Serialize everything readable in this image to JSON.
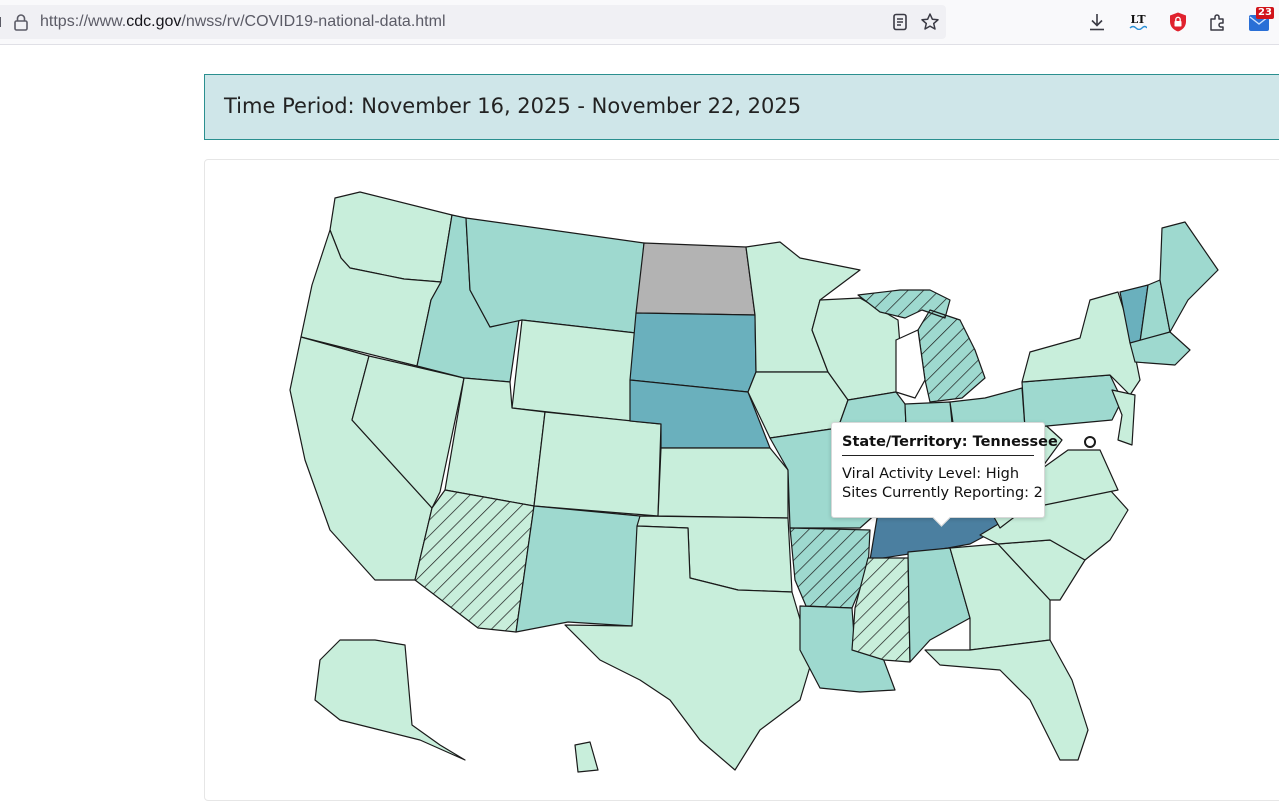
{
  "browser": {
    "url_prefix": "https://www.",
    "url_host": "cdc.gov",
    "url_path": "/nwss/rv/COVID19-national-data.html",
    "extension_badge": "23",
    "lt_label": "LT"
  },
  "period": {
    "text": "Time Period: November 16, 2025 - November 22, 2025"
  },
  "map": {
    "colors": {
      "very_low": "#c8eedb",
      "low": "#9ed9cf",
      "moderate": "#6ab0bd",
      "high": "#4b7fa0",
      "no_data": "#b3b3b3",
      "border": "#1a1a1a"
    },
    "states": {
      "WA": "very_low",
      "OR": "very_low",
      "CA": "very_low",
      "NV": "very_low",
      "ID": "low",
      "MT": "low",
      "WY": "very_low",
      "UT": "very_low",
      "CO": "very_low",
      "AZ": "very_low",
      "NM": "low",
      "ND": "no_data",
      "SD": "moderate",
      "NE": "moderate",
      "KS": "very_low",
      "OK": "very_low",
      "TX": "very_low",
      "MN": "very_low",
      "IA": "very_low",
      "MO": "low",
      "AR": "low",
      "LA": "low",
      "WI": "very_low",
      "IL": "low",
      "MI": "low",
      "IN": "low",
      "OH": "low",
      "KY": "low",
      "TN": "high",
      "MS": "very_low",
      "AL": "low",
      "GA": "very_low",
      "FL": "very_low",
      "SC": "very_low",
      "NC": "very_low",
      "VA": "very_low",
      "WV": "very_low",
      "PA": "low",
      "NY": "very_low",
      "VT": "moderate",
      "NH": "low",
      "ME": "low",
      "MA": "low",
      "NJ": "very_low",
      "AK": "very_low",
      "HI": "very_low"
    }
  },
  "tooltip": {
    "title": "State/Territory: Tennessee",
    "level": "Viral Activity Level: High",
    "sites": "Sites Currently Reporting: 2"
  }
}
